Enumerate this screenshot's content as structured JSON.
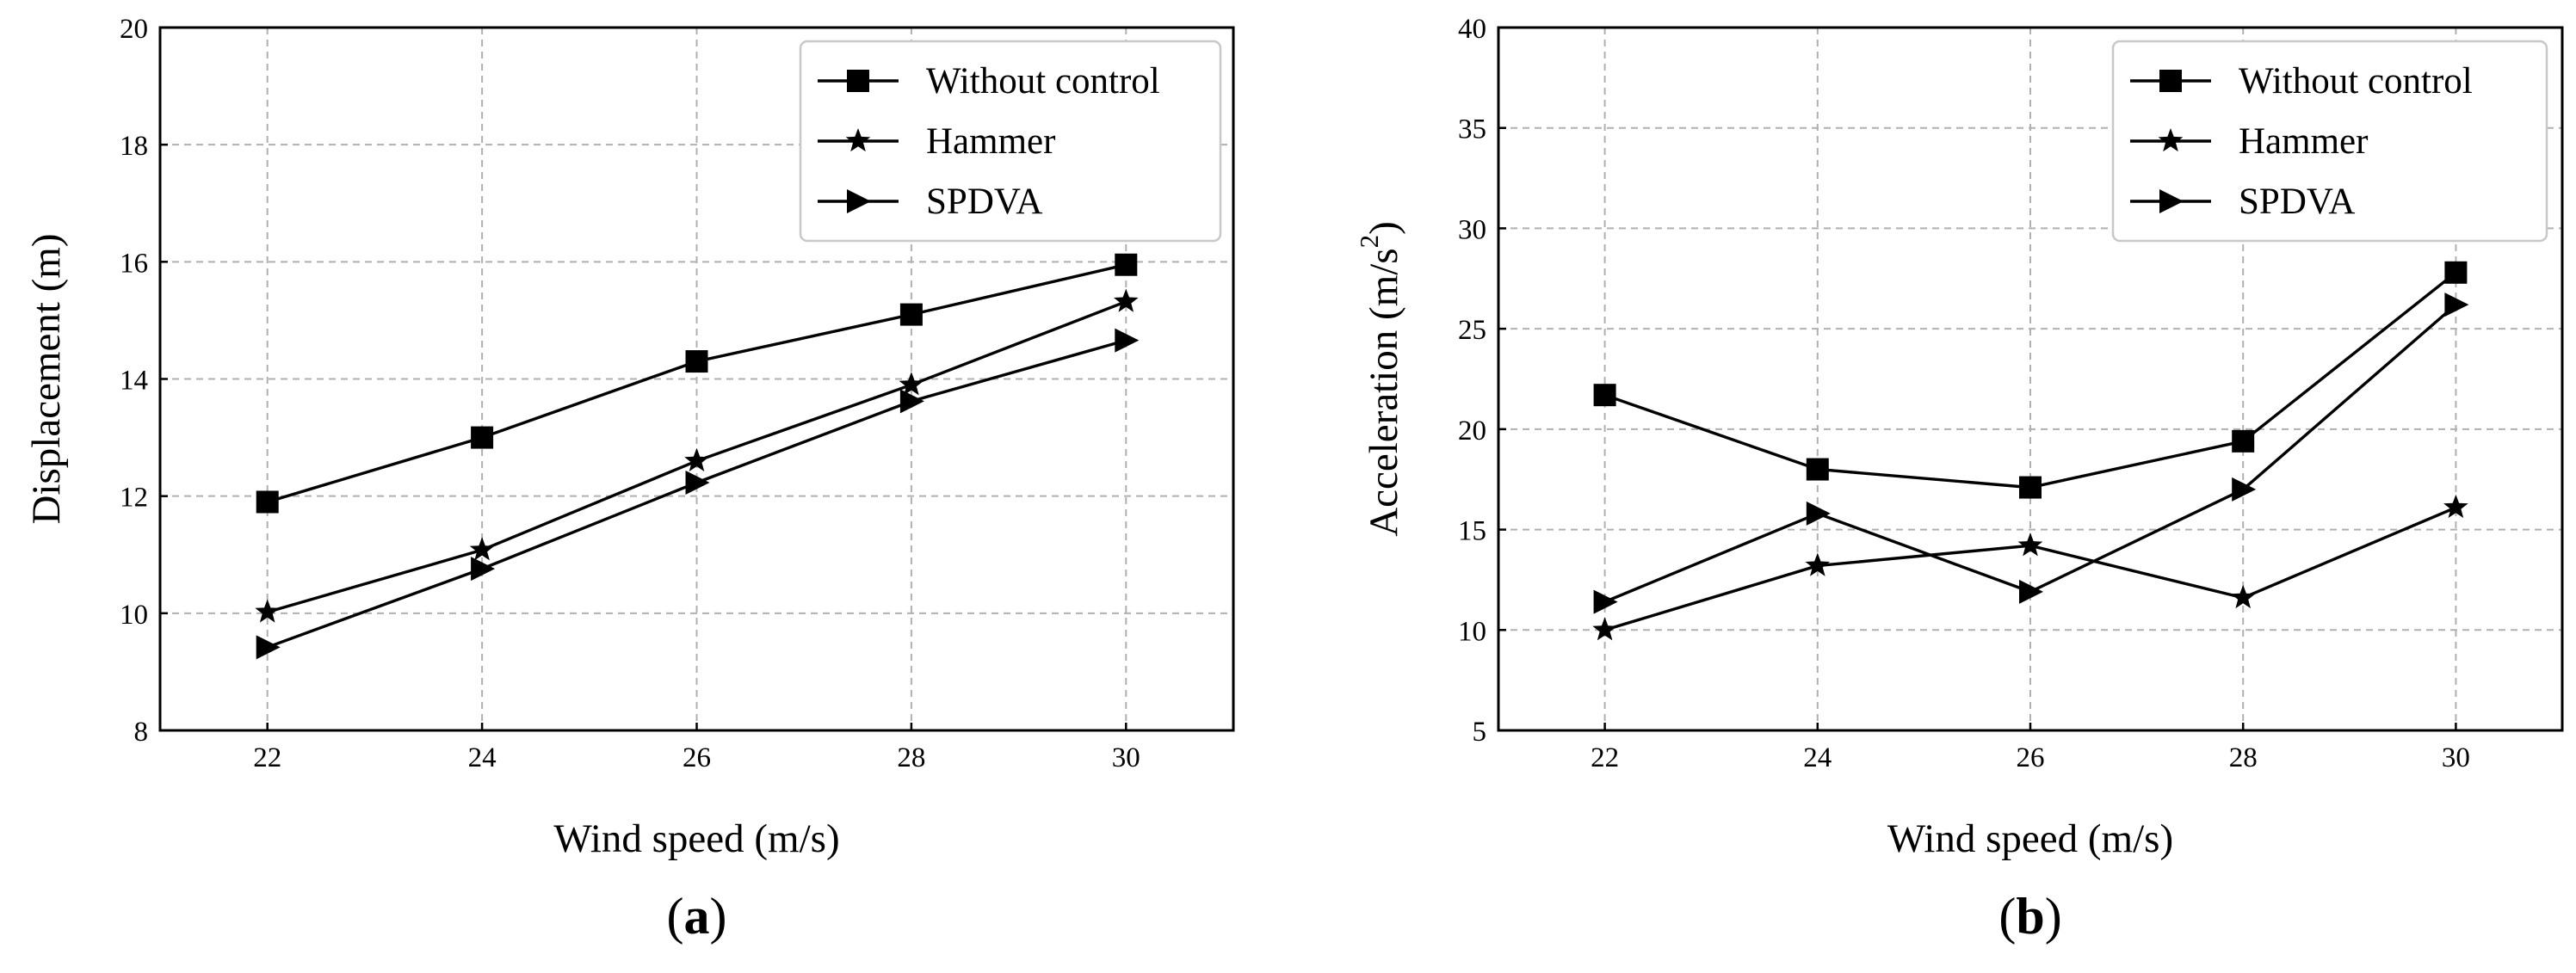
{
  "chart_data": [
    {
      "type": "line",
      "panel_label": "(a)",
      "panel_letter": "a",
      "xlabel": "Wind speed (m/s)",
      "ylabel": "Displacement (m)",
      "x": [
        22,
        24,
        26,
        28,
        30
      ],
      "xlim": [
        21,
        31
      ],
      "ylim": [
        8,
        20
      ],
      "xticks": [
        22,
        24,
        26,
        28,
        30
      ],
      "yticks": [
        8,
        10,
        12,
        14,
        16,
        18,
        20
      ],
      "grid": true,
      "legend_position": "top-right",
      "series": [
        {
          "name": "Without control",
          "marker": "square",
          "values": [
            11.9,
            13.0,
            14.3,
            15.1,
            15.95
          ]
        },
        {
          "name": "Hammer",
          "marker": "star",
          "values": [
            10.02,
            11.08,
            12.6,
            13.9,
            15.32
          ]
        },
        {
          "name": "SPDVA",
          "marker": "triangle-right",
          "values": [
            9.42,
            10.76,
            12.23,
            13.62,
            14.66
          ]
        }
      ]
    },
    {
      "type": "line",
      "panel_label": "(b)",
      "panel_letter": "b",
      "xlabel": "Wind speed (m/s)",
      "ylabel": "Acceleration (m/s²)",
      "ylabel_base": "Acceleration (m/s",
      "ylabel_sup": "2",
      "ylabel_close": ")",
      "x": [
        22,
        24,
        26,
        28,
        30
      ],
      "xlim": [
        21,
        31
      ],
      "ylim": [
        5,
        40
      ],
      "xticks": [
        22,
        24,
        26,
        28,
        30
      ],
      "yticks": [
        5,
        10,
        15,
        20,
        25,
        30,
        35,
        40
      ],
      "grid": true,
      "legend_position": "top-right",
      "series": [
        {
          "name": "Without control",
          "marker": "square",
          "values": [
            21.7,
            18.0,
            17.1,
            19.4,
            27.8
          ]
        },
        {
          "name": "Hammer",
          "marker": "star",
          "values": [
            10.0,
            13.2,
            14.2,
            11.6,
            16.1
          ]
        },
        {
          "name": "SPDVA",
          "marker": "triangle-right",
          "values": [
            11.4,
            15.8,
            11.9,
            17.0,
            26.2
          ]
        }
      ]
    }
  ]
}
